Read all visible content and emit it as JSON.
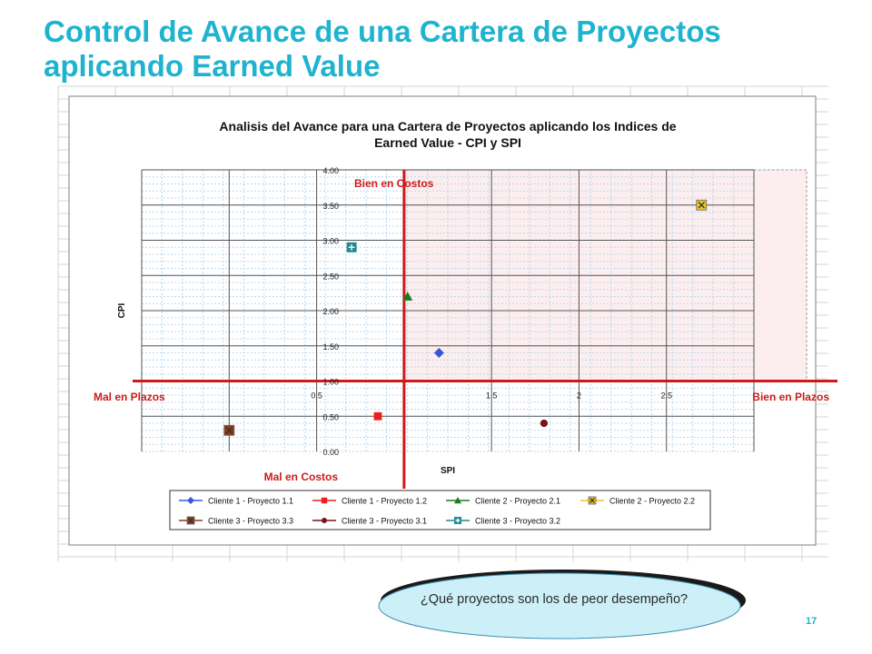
{
  "slide": {
    "title": "Control de Avance de una Cartera de Proyectos aplicando Earned Value",
    "page_number": "17"
  },
  "callout": {
    "text": "¿Qué proyectos son los de peor desempeño?"
  },
  "chart_data": {
    "type": "scatter",
    "title": "Analisis del Avance para una Cartera de Proyectos aplicando  los Indices de Earned Value - CPI y SPI",
    "xlabel": "SPI",
    "ylabel": "CPI",
    "xlim": [
      -0.5,
      3.0
    ],
    "ylim": [
      0,
      4
    ],
    "x_ticks": [
      {
        "value": 0.5,
        "label": "0.5"
      },
      {
        "value": 1.5,
        "label": "1.5"
      },
      {
        "value": 2.0,
        "label": "2"
      },
      {
        "value": 2.5,
        "label": "2.5"
      }
    ],
    "y_ticks": [
      {
        "value": 0,
        "label": "0.00"
      },
      {
        "value": 0.5,
        "label": "0.50"
      },
      {
        "value": 1.0,
        "label": "1.00"
      },
      {
        "value": 1.5,
        "label": "1.50"
      },
      {
        "value": 2.0,
        "label": "2.00"
      },
      {
        "value": 2.5,
        "label": "2.50"
      },
      {
        "value": 3.0,
        "label": "3.00"
      },
      {
        "value": 3.5,
        "label": "3.50"
      },
      {
        "value": 4.0,
        "label": "4.00"
      }
    ],
    "grid": true,
    "legend_position": "bottom",
    "quadrant_labels": {
      "top": "Bien en Costos",
      "bottom": "Mal en Costos",
      "left": "Mal en Plazos",
      "right": "Bien en Plazos"
    },
    "highlight_region": {
      "x": [
        1.0,
        3.0
      ],
      "y": [
        1.0,
        4.0
      ],
      "color": "#FCEEEE"
    },
    "quadrant_axis_color": "#CC1A1A",
    "series": [
      {
        "name": "Cliente 1 - Proyecto 1.1",
        "marker": "diamond",
        "color": "#3A57D8",
        "points": [
          {
            "x": 1.2,
            "y": 1.4
          }
        ]
      },
      {
        "name": "Cliente 1 - Proyecto 1.2",
        "marker": "square",
        "color": "#F01D1D",
        "points": [
          {
            "x": 0.85,
            "y": 0.5
          }
        ]
      },
      {
        "name": "Cliente 2 - Proyecto 2.1",
        "marker": "triangle",
        "color": "#1F7A1F",
        "points": [
          {
            "x": 1.02,
            "y": 2.2
          }
        ]
      },
      {
        "name": "Cliente 2 - Proyecto 2.2",
        "marker": "x-square",
        "color": "#F2C420",
        "points": [
          {
            "x": 2.7,
            "y": 3.5
          }
        ]
      },
      {
        "name": "Cliente 3 - Proyecto 3.3",
        "marker": "x-square",
        "color": "#8C3A1A",
        "points": [
          {
            "x": 0.0,
            "y": 0.3
          }
        ]
      },
      {
        "name": "Cliente 3 - Proyecto 3.1",
        "marker": "circle",
        "color": "#7A1414",
        "points": [
          {
            "x": 1.8,
            "y": 0.4
          }
        ]
      },
      {
        "name": "Cliente 3 - Proyecto 3.2",
        "marker": "plus-square",
        "color": "#1F8A8F",
        "points": [
          {
            "x": 0.7,
            "y": 2.9
          }
        ]
      }
    ]
  }
}
